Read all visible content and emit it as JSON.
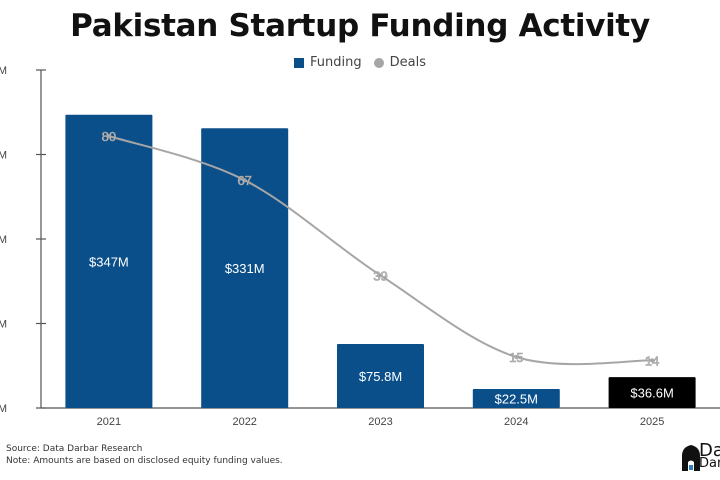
{
  "chart_data": {
    "type": "bar",
    "title": "Pakistan Startup Funding Activity",
    "categories": [
      "2021",
      "2022",
      "2023",
      "2024",
      "2025"
    ],
    "series": [
      {
        "name": "Funding",
        "type": "bar",
        "unit": "$M",
        "values": [
          347,
          331,
          75.8,
          22.5,
          36.6
        ],
        "labels": [
          "$347M",
          "$331M",
          "$75.8M",
          "$22.5M",
          "$36.6M"
        ],
        "colors": [
          "#0b4f8a",
          "#0b4f8a",
          "#0b4f8a",
          "#0b4f8a",
          "#000000"
        ]
      },
      {
        "name": "Deals",
        "type": "line",
        "values": [
          80,
          67,
          39,
          15,
          14
        ],
        "labels": [
          "80",
          "67",
          "39",
          "15",
          "14"
        ],
        "color": "#a6a6a6"
      }
    ],
    "ylim": [
      0,
      400
    ],
    "yticks": [
      0,
      100,
      200,
      300,
      400
    ],
    "ytick_labels": [
      "M",
      "M",
      "M",
      "M",
      "M"
    ],
    "deals_ylim": [
      0,
      100
    ],
    "legend": "top-center",
    "grid": false,
    "xlabel": "",
    "ylabel": ""
  },
  "legend": {
    "funding": "Funding",
    "deals": "Deals"
  },
  "footer": {
    "source": "Source: Data Darbar Research",
    "note": "Note: Amounts are based on disclosed equity funding values."
  },
  "logo": {
    "line1": "Da",
    "line2": "Darbar"
  },
  "colors": {
    "funding": "#0b4f8a",
    "highlight": "#000000",
    "deals": "#a6a6a6"
  }
}
